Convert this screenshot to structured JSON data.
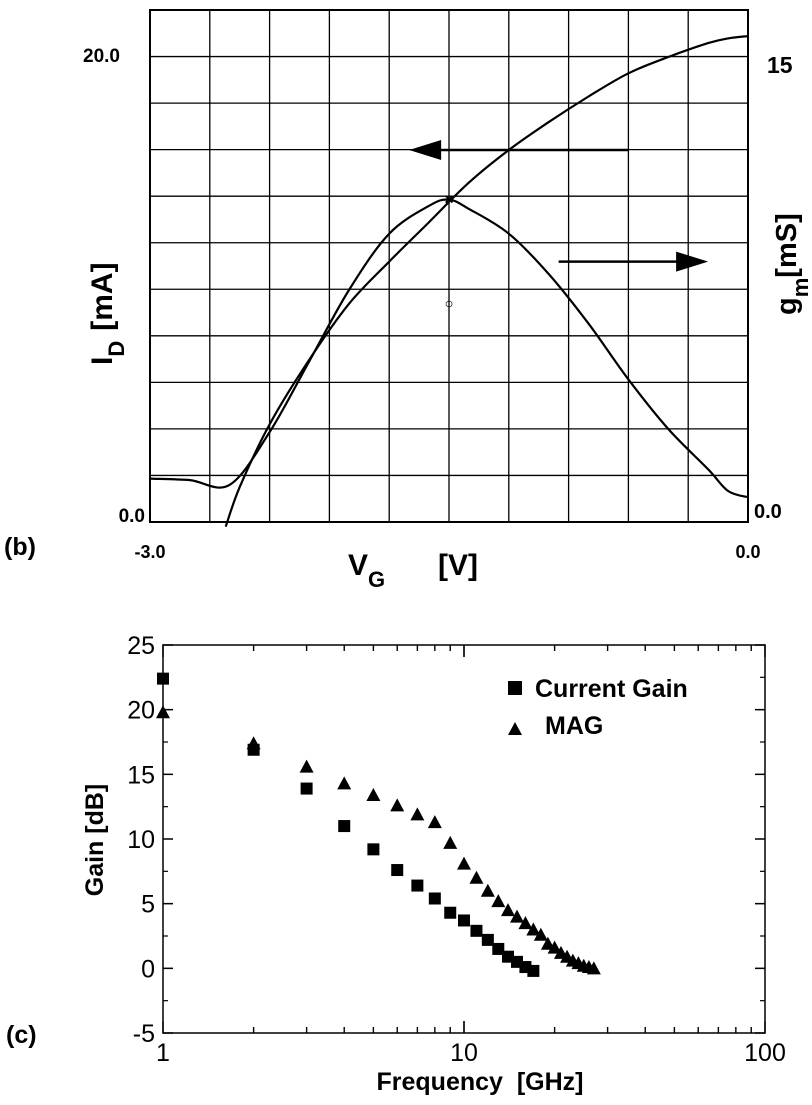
{
  "chart_data": [
    {
      "panel_label": "(b)",
      "type": "line",
      "xlabel_main": "V",
      "xlabel_sub": "G",
      "xlabel_unit": "[V]",
      "ylabel_left_main": "I",
      "ylabel_left_sub": "D",
      "ylabel_left_unit": "[mA]",
      "ylabel_right_main": "g",
      "ylabel_right_sub": "m",
      "ylabel_right_unit": "[mS]",
      "xlim": [
        -3.0,
        0.0
      ],
      "ylim_left": [
        0.0,
        20.0
      ],
      "ylim_right": [
        0.0,
        15
      ],
      "x_tick_labels": [
        "-3.0",
        "0.0"
      ],
      "y_left_tick_labels": [
        "0.0",
        "20.0"
      ],
      "y_right_tick_labels": [
        "0.0",
        "15"
      ],
      "grid": true,
      "series": [
        {
          "axis": "left",
          "x": [
            -2.62,
            -2.55,
            -2.4,
            -2.2,
            -2.0,
            -1.8,
            -1.6,
            -1.4,
            -1.2,
            -1.0,
            -0.8,
            -0.6,
            -0.4,
            -0.2,
            -0.1,
            0.0
          ],
          "y": [
            -0.2,
            1.5,
            4.2,
            7.0,
            9.4,
            11.2,
            12.9,
            14.6,
            16.0,
            17.2,
            18.3,
            19.3,
            20.0,
            20.6,
            20.8,
            20.9
          ]
        },
        {
          "axis": "right",
          "x": [
            -3.0,
            -2.8,
            -2.6,
            -2.4,
            -2.2,
            -2.0,
            -1.8,
            -1.6,
            -1.5,
            -1.4,
            -1.2,
            -1.0,
            -0.8,
            -0.6,
            -0.4,
            -0.2,
            -0.1,
            0.0
          ],
          "y": [
            1.4,
            1.35,
            1.2,
            2.9,
            5.2,
            7.5,
            9.3,
            10.2,
            10.4,
            10.1,
            9.3,
            8.0,
            6.4,
            4.6,
            3.0,
            1.7,
            1.0,
            0.8
          ]
        }
      ],
      "markers": [
        {
          "symbol": "×",
          "x": -1.5,
          "y_right": 10.4
        },
        {
          "symbol": "○",
          "x": -1.5,
          "y_left": 9.4
        }
      ],
      "arrows": [
        {
          "direction": "left",
          "x_from": -0.6,
          "x_to": -1.7,
          "y_left": 16.0
        },
        {
          "direction": "right",
          "x_from": -0.95,
          "x_to": -0.2,
          "y_left": 11.2
        }
      ]
    },
    {
      "panel_label": "(c)",
      "type": "scatter",
      "xlabel": "Frequency  [GHz]",
      "ylabel": "Gain [dB]",
      "x_scale": "log",
      "xlim": [
        1,
        100
      ],
      "ylim": [
        -5,
        25
      ],
      "x_tick_labels": [
        "1",
        "10",
        "100"
      ],
      "y_tick_labels": [
        "-5",
        "0",
        "5",
        "10",
        "15",
        "20",
        "25"
      ],
      "legend_placement": "top-right",
      "series": [
        {
          "name": "Current Gain",
          "marker": "square",
          "x": [
            1,
            2,
            3,
            4,
            5,
            6,
            7,
            8,
            9,
            10,
            11,
            12,
            13,
            14,
            15,
            16,
            17
          ],
          "y": [
            22.4,
            16.9,
            13.9,
            11.0,
            9.2,
            7.6,
            6.4,
            5.4,
            4.3,
            3.7,
            2.9,
            2.2,
            1.5,
            0.9,
            0.5,
            0.1,
            -0.2
          ]
        },
        {
          "name": "MAG",
          "marker": "triangle",
          "x": [
            1,
            2,
            3,
            4,
            5,
            6,
            7,
            8,
            9,
            10,
            11,
            12,
            13,
            14,
            15,
            16,
            17,
            18,
            19,
            20,
            21,
            22,
            23,
            24,
            25,
            26,
            27
          ],
          "y": [
            19.8,
            17.4,
            15.6,
            14.3,
            13.4,
            12.6,
            11.9,
            11.3,
            9.7,
            8.1,
            7.0,
            6.0,
            5.2,
            4.5,
            4.0,
            3.5,
            3.0,
            2.6,
            1.9,
            1.6,
            1.2,
            0.9,
            0.6,
            0.4,
            0.2,
            0.1,
            0.0
          ]
        }
      ]
    }
  ]
}
